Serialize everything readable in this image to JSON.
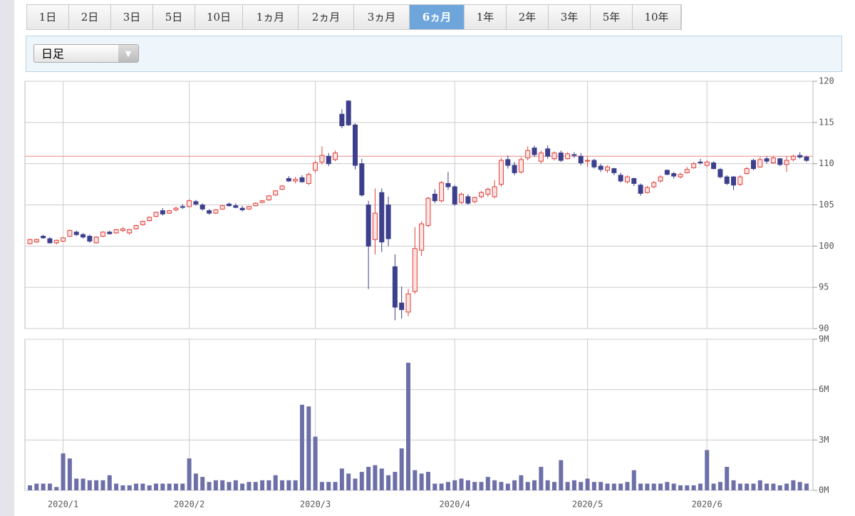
{
  "tabs": [
    "1日",
    "2日",
    "3日",
    "5日",
    "10日",
    "1ヵ月",
    "2ヵ月",
    "3ヵ月",
    "6ヵ月",
    "1年",
    "2年",
    "3年",
    "5年",
    "10年"
  ],
  "selected_tab": 8,
  "select": {
    "label": "日足"
  },
  "chart_data": {
    "type": "candlestick",
    "categories": [
      null,
      null,
      null,
      null,
      null,
      "2020/1",
      null,
      null,
      null,
      null,
      null,
      null,
      null,
      null,
      null,
      null,
      null,
      null,
      null,
      null,
      null,
      null,
      null,
      null,
      "2020/2",
      null,
      null,
      null,
      null,
      null,
      null,
      null,
      null,
      null,
      null,
      null,
      null,
      null,
      null,
      null,
      null,
      null,
      null,
      "2020/3",
      null,
      null,
      null,
      null,
      null,
      null,
      null,
      null,
      null,
      null,
      null,
      null,
      null,
      null,
      null,
      null,
      null,
      null,
      null,
      null,
      "2020/4",
      null,
      null,
      null,
      null,
      null,
      null,
      null,
      null,
      null,
      null,
      null,
      null,
      null,
      null,
      null,
      null,
      null,
      null,
      null,
      "2020/5",
      null,
      null,
      null,
      null,
      null,
      null,
      null,
      null,
      null,
      null,
      null,
      null,
      null,
      null,
      null,
      null,
      null,
      "2020/6",
      null,
      null,
      null,
      null,
      null,
      null,
      null,
      null,
      null,
      null,
      null,
      null,
      null,
      null,
      null
    ],
    "ohlc": [
      [
        100.3,
        100.9,
        100.2,
        100.8
      ],
      [
        100.5,
        100.9,
        100.4,
        100.8
      ],
      [
        101.2,
        101.4,
        100.9,
        101.0
      ],
      [
        100.9,
        101.1,
        100.3,
        100.4
      ],
      [
        100.4,
        100.8,
        100.2,
        100.7
      ],
      [
        100.6,
        101.1,
        100.5,
        101.0
      ],
      [
        101.2,
        102.0,
        101.1,
        101.9
      ],
      [
        101.7,
        101.9,
        101.2,
        101.4
      ],
      [
        101.4,
        101.6,
        100.9,
        101.1
      ],
      [
        101.2,
        101.4,
        100.4,
        100.6
      ],
      [
        100.4,
        101.2,
        100.3,
        101.1
      ],
      [
        101.2,
        101.8,
        101.1,
        101.7
      ],
      [
        101.7,
        101.9,
        101.4,
        101.5
      ],
      [
        101.6,
        102.1,
        101.5,
        102.0
      ],
      [
        101.9,
        102.3,
        101.7,
        102.1
      ],
      [
        101.6,
        102.1,
        101.4,
        102.0
      ],
      [
        102.1,
        102.6,
        102.0,
        102.5
      ],
      [
        102.6,
        103.1,
        102.5,
        103.0
      ],
      [
        103.1,
        103.6,
        103.0,
        103.5
      ],
      [
        103.6,
        104.2,
        103.5,
        104.1
      ],
      [
        104.3,
        104.6,
        103.7,
        103.9
      ],
      [
        104.0,
        104.4,
        103.9,
        104.3
      ],
      [
        104.4,
        104.8,
        104.2,
        104.6
      ],
      [
        104.8,
        105.1,
        104.5,
        104.7
      ],
      [
        104.8,
        105.7,
        104.7,
        105.5
      ],
      [
        105.4,
        105.6,
        104.9,
        105.1
      ],
      [
        105.0,
        105.2,
        104.3,
        104.5
      ],
      [
        104.3,
        104.5,
        103.8,
        104.0
      ],
      [
        104.0,
        104.5,
        103.9,
        104.4
      ],
      [
        104.5,
        105.0,
        104.4,
        104.9
      ],
      [
        105.1,
        105.3,
        104.8,
        104.9
      ],
      [
        104.9,
        105.2,
        104.6,
        104.7
      ],
      [
        104.6,
        104.9,
        104.2,
        104.4
      ],
      [
        104.5,
        104.9,
        104.4,
        104.8
      ],
      [
        104.9,
        105.3,
        104.8,
        105.2
      ],
      [
        105.3,
        105.6,
        105.2,
        105.5
      ],
      [
        105.6,
        106.2,
        105.5,
        106.1
      ],
      [
        106.2,
        106.8,
        106.1,
        106.7
      ],
      [
        106.9,
        107.4,
        106.8,
        107.3
      ],
      [
        108.2,
        108.5,
        107.8,
        107.9
      ],
      [
        107.9,
        108.4,
        107.6,
        108.1
      ],
      [
        108.3,
        108.6,
        107.7,
        107.8
      ],
      [
        107.6,
        108.9,
        107.4,
        108.7
      ],
      [
        109.2,
        110.3,
        108.9,
        110.1
      ],
      [
        110.2,
        112.1,
        109.9,
        111.0
      ],
      [
        110.9,
        111.3,
        109.7,
        110.0
      ],
      [
        110.5,
        111.6,
        110.3,
        111.3
      ],
      [
        116.0,
        116.6,
        114.3,
        114.6
      ],
      [
        117.6,
        117.7,
        114.6,
        114.7
      ],
      [
        114.7,
        114.9,
        109.3,
        109.8
      ],
      [
        110.0,
        110.6,
        106.0,
        106.2
      ],
      [
        105.0,
        105.5,
        94.8,
        100.0
      ],
      [
        100.8,
        107.0,
        99.0,
        104.0
      ],
      [
        106.5,
        107.0,
        99.3,
        100.5
      ],
      [
        105.0,
        106.0,
        100.0,
        100.9
      ],
      [
        97.5,
        99.0,
        91.0,
        92.6
      ],
      [
        93.1,
        95.1,
        91.2,
        92.3
      ],
      [
        92.0,
        94.8,
        91.5,
        94.2
      ],
      [
        94.5,
        102.3,
        94.2,
        99.7
      ],
      [
        99.5,
        103.0,
        98.8,
        102.7
      ],
      [
        102.5,
        106.0,
        102.3,
        105.8
      ],
      [
        106.3,
        106.9,
        105.2,
        105.5
      ],
      [
        105.5,
        107.9,
        105.3,
        107.7
      ],
      [
        107.6,
        109.0,
        106.8,
        107.2
      ],
      [
        107.2,
        107.4,
        104.9,
        105.1
      ],
      [
        105.3,
        106.5,
        105.1,
        106.3
      ],
      [
        106.0,
        106.3,
        105.0,
        105.2
      ],
      [
        105.4,
        106.0,
        105.2,
        105.9
      ],
      [
        106.0,
        106.7,
        105.8,
        106.5
      ],
      [
        106.3,
        107.1,
        106.0,
        106.9
      ],
      [
        106.0,
        108.0,
        105.8,
        107.2
      ],
      [
        107.5,
        110.7,
        107.2,
        110.4
      ],
      [
        110.5,
        111.0,
        109.4,
        109.8
      ],
      [
        109.8,
        110.2,
        108.6,
        108.9
      ],
      [
        109.0,
        110.8,
        108.8,
        110.5
      ],
      [
        110.7,
        112.1,
        110.4,
        111.6
      ],
      [
        111.9,
        112.2,
        110.8,
        111.1
      ],
      [
        110.3,
        111.6,
        110.0,
        111.3
      ],
      [
        111.8,
        112.2,
        110.6,
        110.9
      ],
      [
        110.6,
        111.5,
        110.4,
        111.3
      ],
      [
        111.3,
        111.6,
        110.2,
        110.4
      ],
      [
        110.6,
        111.4,
        110.5,
        111.2
      ],
      [
        111.1,
        111.4,
        110.7,
        111.0
      ],
      [
        110.9,
        111.3,
        109.8,
        110.1
      ],
      [
        110.3,
        110.8,
        109.6,
        110.4
      ],
      [
        110.4,
        110.6,
        109.4,
        109.6
      ],
      [
        109.7,
        110.0,
        109.0,
        109.3
      ],
      [
        109.2,
        109.8,
        108.9,
        109.6
      ],
      [
        109.4,
        109.5,
        108.6,
        108.9
      ],
      [
        108.6,
        108.9,
        107.7,
        107.9
      ],
      [
        107.8,
        108.6,
        107.6,
        108.4
      ],
      [
        108.2,
        108.3,
        107.3,
        107.6
      ],
      [
        107.4,
        107.6,
        106.1,
        106.4
      ],
      [
        106.5,
        107.3,
        106.4,
        107.1
      ],
      [
        107.2,
        107.9,
        107.0,
        107.7
      ],
      [
        107.9,
        108.6,
        107.7,
        108.4
      ],
      [
        109.2,
        109.3,
        108.6,
        108.7
      ],
      [
        108.8,
        109.0,
        108.2,
        108.5
      ],
      [
        108.4,
        108.9,
        108.2,
        108.7
      ],
      [
        108.9,
        109.6,
        108.8,
        109.3
      ],
      [
        109.5,
        110.2,
        109.4,
        110.0
      ],
      [
        110.2,
        110.6,
        109.9,
        110.1
      ],
      [
        109.8,
        110.4,
        109.6,
        110.2
      ],
      [
        110.1,
        110.3,
        109.3,
        109.4
      ],
      [
        109.3,
        109.5,
        108.2,
        108.4
      ],
      [
        108.4,
        108.6,
        107.4,
        107.6
      ],
      [
        108.4,
        108.5,
        106.8,
        107.4
      ],
      [
        107.5,
        108.6,
        107.3,
        108.4
      ],
      [
        108.8,
        109.6,
        108.7,
        109.4
      ],
      [
        110.4,
        110.6,
        109.2,
        109.4
      ],
      [
        109.6,
        110.8,
        109.5,
        110.5
      ],
      [
        110.6,
        110.9,
        110.0,
        110.3
      ],
      [
        110.1,
        110.9,
        110.0,
        110.7
      ],
      [
        110.6,
        110.7,
        109.7,
        109.9
      ],
      [
        109.9,
        110.9,
        109.0,
        110.4
      ],
      [
        110.5,
        111.1,
        110.3,
        110.9
      ],
      [
        111.0,
        111.4,
        110.6,
        110.8
      ],
      [
        110.8,
        111.0,
        110.2,
        110.4
      ]
    ],
    "volume": [
      0.3,
      0.4,
      0.4,
      0.4,
      0.2,
      2.2,
      1.9,
      0.7,
      0.7,
      0.6,
      0.6,
      0.6,
      0.9,
      0.4,
      0.3,
      0.3,
      0.4,
      0.4,
      0.3,
      0.4,
      0.4,
      0.4,
      0.4,
      0.4,
      1.9,
      1.0,
      0.8,
      0.5,
      0.6,
      0.6,
      0.5,
      0.6,
      0.4,
      0.5,
      0.5,
      0.6,
      0.6,
      0.9,
      0.6,
      0.6,
      0.6,
      5.1,
      5.0,
      3.2,
      0.5,
      0.5,
      0.5,
      1.3,
      1.0,
      0.7,
      1.1,
      1.4,
      1.5,
      1.3,
      0.9,
      1.1,
      2.5,
      7.6,
      1.2,
      1.0,
      1.1,
      0.4,
      0.4,
      0.5,
      0.6,
      0.7,
      0.6,
      0.5,
      0.5,
      0.8,
      0.6,
      0.5,
      0.4,
      0.6,
      0.9,
      0.5,
      0.6,
      1.4,
      0.6,
      0.5,
      1.8,
      0.5,
      0.6,
      0.5,
      0.7,
      0.5,
      0.5,
      0.4,
      0.4,
      0.4,
      0.5,
      1.2,
      0.4,
      0.4,
      0.4,
      0.4,
      0.5,
      0.4,
      0.3,
      0.3,
      0.3,
      0.4,
      2.4,
      0.4,
      0.5,
      1.4,
      0.6,
      0.4,
      0.4,
      0.4,
      0.6,
      0.4,
      0.4,
      0.3,
      0.4,
      0.6,
      0.5,
      0.4
    ],
    "up_color": "#e0403a",
    "down_color": "#3c3f8c",
    "volume_color": "#6d70a8",
    "reference_color": "#e88a88",
    "reference_line": 110.9,
    "ylim": [
      90,
      120
    ],
    "yticks": [
      90,
      95,
      100,
      105,
      110,
      115,
      120
    ],
    "y2lim": [
      0,
      9
    ],
    "y2ticks": [
      {
        "value": 0,
        "label": "0M"
      },
      {
        "value": 3,
        "label": "3M"
      },
      {
        "value": 6,
        "label": "6M"
      },
      {
        "value": 9,
        "label": "9M"
      }
    ],
    "grid": true
  }
}
